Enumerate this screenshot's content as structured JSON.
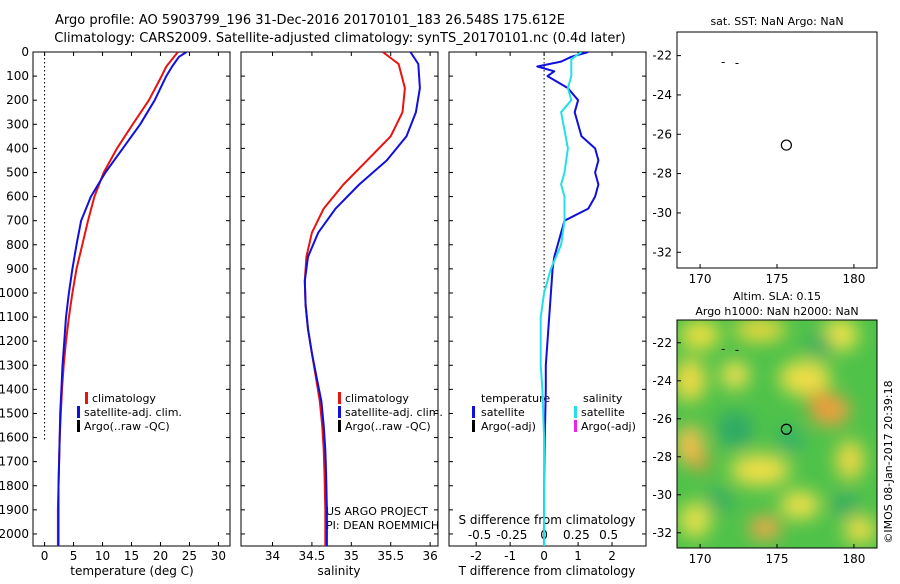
{
  "header": {
    "line1": "Argo profile: AO 5903799_196 31-Dec-2016 20170101_183 26.548S 175.612E",
    "line2": "Climatology: CARS2009. Satellite-adjusted climatology: synTS_20170101.nc (0.4d later)"
  },
  "side_stamp": "©IMOS 08-Jan-2017 20:39:18",
  "colors": {
    "climatology": "#e8120f",
    "satellite": "#1010dd",
    "argo": "#000000",
    "sal_sat": "#22e0e6",
    "sal_argo": "#ee22ee"
  },
  "chart_data": [
    {
      "type": "line",
      "id": "temperature",
      "xlabel": "temperature (deg C)",
      "ylim": [
        2050,
        0
      ],
      "xlim": [
        -2,
        32
      ],
      "x_ticks": [
        0,
        5,
        10,
        15,
        20,
        25,
        30
      ],
      "y_ticks": [
        0,
        100,
        200,
        300,
        400,
        500,
        600,
        700,
        800,
        900,
        1000,
        1100,
        1200,
        1300,
        1400,
        1500,
        1600,
        1700,
        1800,
        1900,
        2000
      ],
      "legend": [
        "climatology",
        "satellite-adj. clim.",
        "Argo(..raw -QC)"
      ],
      "series": [
        {
          "name": "climatology",
          "color": "#e8120f",
          "x": [
            23.0,
            21.0,
            20.2,
            18.0,
            15.2,
            12.5,
            10.2,
            8.6,
            7.5,
            6.5,
            5.5,
            4.8,
            4.2,
            3.7,
            3.3,
            3.0,
            2.8,
            2.6,
            2.5,
            2.4,
            2.3,
            2.3
          ],
          "depth": [
            0,
            60,
            100,
            200,
            300,
            400,
            500,
            600,
            700,
            800,
            900,
            1000,
            1100,
            1200,
            1300,
            1400,
            1500,
            1600,
            1700,
            1800,
            1900,
            2050
          ]
        },
        {
          "name": "satellite-adj. clim.",
          "color": "#1010dd",
          "x": [
            24.5,
            23.2,
            22.0,
            21.0,
            19.0,
            16.5,
            13.5,
            10.5,
            8.0,
            6.3,
            5.5,
            4.8,
            4.2,
            3.7,
            3.4,
            3.1,
            2.9,
            2.7,
            2.6,
            2.5,
            2.4,
            2.4
          ],
          "depth": [
            0,
            20,
            60,
            100,
            200,
            300,
            400,
            500,
            600,
            700,
            800,
            900,
            1000,
            1100,
            1200,
            1300,
            1400,
            1500,
            1600,
            1700,
            1800,
            2050
          ]
        }
      ]
    },
    {
      "type": "line",
      "id": "salinity",
      "xlabel": "salinity",
      "ylim": [
        2050,
        0
      ],
      "xlim": [
        33.6,
        36.1
      ],
      "x_ticks": [
        34,
        34.5,
        35,
        35.5,
        36
      ],
      "legend": [
        "climatology",
        "satellite-adj. clim.",
        "Argo(..raw -QC)"
      ],
      "series": [
        {
          "name": "climatology",
          "color": "#e8120f",
          "x": [
            35.4,
            35.6,
            35.68,
            35.65,
            35.5,
            35.2,
            34.9,
            34.65,
            34.5,
            34.43,
            34.41,
            34.42,
            34.45,
            34.5,
            34.55,
            34.6,
            34.63,
            34.65,
            34.66,
            34.67,
            34.67
          ],
          "depth": [
            0,
            50,
            150,
            250,
            350,
            450,
            550,
            650,
            750,
            850,
            950,
            1050,
            1150,
            1250,
            1350,
            1450,
            1550,
            1650,
            1750,
            1900,
            2050
          ]
        },
        {
          "name": "satellite-adj. clim.",
          "color": "#1010dd",
          "x": [
            35.75,
            35.85,
            35.87,
            35.82,
            35.7,
            35.45,
            35.1,
            34.8,
            34.58,
            34.45,
            34.41,
            34.42,
            34.45,
            34.5,
            34.56,
            34.62,
            34.65,
            34.67,
            34.68,
            34.69,
            34.69
          ],
          "depth": [
            0,
            50,
            150,
            250,
            350,
            450,
            550,
            650,
            750,
            850,
            950,
            1050,
            1150,
            1250,
            1350,
            1450,
            1550,
            1650,
            1750,
            1900,
            2050
          ]
        }
      ]
    },
    {
      "type": "line",
      "id": "difference",
      "xlabel": "T difference from climatology",
      "top_label": "S difference from climatology",
      "ylim": [
        2050,
        0
      ],
      "xlim": [
        -2.8,
        3.0
      ],
      "x_ticks": [
        -2,
        -1,
        0,
        1,
        2
      ],
      "s_ticks": [
        "-0.5",
        "-0.25",
        "0",
        "0.25",
        "0.5"
      ],
      "legend_temperature": {
        "title": "temperature",
        "items": [
          "satellite",
          "Argo(-adj)"
        ]
      },
      "legend_salinity": {
        "title": "salinity",
        "items": [
          "satellite",
          "Argo(-adj)"
        ]
      },
      "series": [
        {
          "name": "satellite",
          "color": "#1010dd",
          "x": [
            1.3,
            0.8,
            0.5,
            -0.2,
            0.3,
            0.1,
            0.7,
            1.0,
            0.9,
            1.0,
            1.1,
            1.5,
            1.6,
            1.5,
            1.6,
            1.5,
            1.3,
            0.6,
            0.5,
            0.4,
            0.3,
            0.25,
            0.2,
            0.15,
            0.1,
            0.05,
            0.05,
            0.02,
            0.0,
            0.0
          ],
          "depth": [
            0,
            20,
            40,
            60,
            80,
            100,
            150,
            200,
            250,
            300,
            350,
            400,
            450,
            500,
            550,
            600,
            650,
            700,
            750,
            800,
            850,
            900,
            1000,
            1100,
            1200,
            1300,
            1400,
            1600,
            1800,
            2050
          ]
        },
        {
          "name": "salinity satellite",
          "color": "#22e0e6",
          "x": [
            1.1,
            0.8,
            0.8,
            0.7,
            0.8,
            0.5,
            0.7,
            0.6,
            0.5,
            0.6,
            0.6,
            0.5,
            0.2,
            0.0,
            -0.1,
            -0.1,
            -0.05,
            0.0,
            0.0,
            0.0
          ],
          "depth": [
            0,
            30,
            100,
            150,
            200,
            250,
            400,
            500,
            550,
            600,
            700,
            800,
            900,
            1000,
            1100,
            1300,
            1400,
            1600,
            1800,
            2050
          ]
        }
      ]
    },
    {
      "type": "scatter",
      "id": "sst-map",
      "title": "sat. SST: NaN Argo: NaN",
      "xlim": [
        168.5,
        181.5
      ],
      "ylim": [
        -32.8,
        -20.8
      ],
      "x_ticks": [
        170,
        175,
        180
      ],
      "y_ticks": [
        -22,
        -24,
        -26,
        -28,
        -30,
        -32
      ],
      "points": [
        {
          "x": 175.61,
          "y": -26.55
        }
      ]
    },
    {
      "type": "heatmap",
      "id": "sla-map",
      "title1": "Altim. SLA: 0.15",
      "title2": "Argo h1000: NaN h2000: NaN",
      "xlim": [
        168.5,
        181.5
      ],
      "ylim": [
        -32.8,
        -20.8
      ],
      "x_ticks": [
        170,
        175,
        180
      ],
      "y_ticks": [
        -22,
        -24,
        -26,
        -28,
        -30,
        -32
      ],
      "points": [
        {
          "x": 175.61,
          "y": -26.55
        }
      ]
    }
  ]
}
